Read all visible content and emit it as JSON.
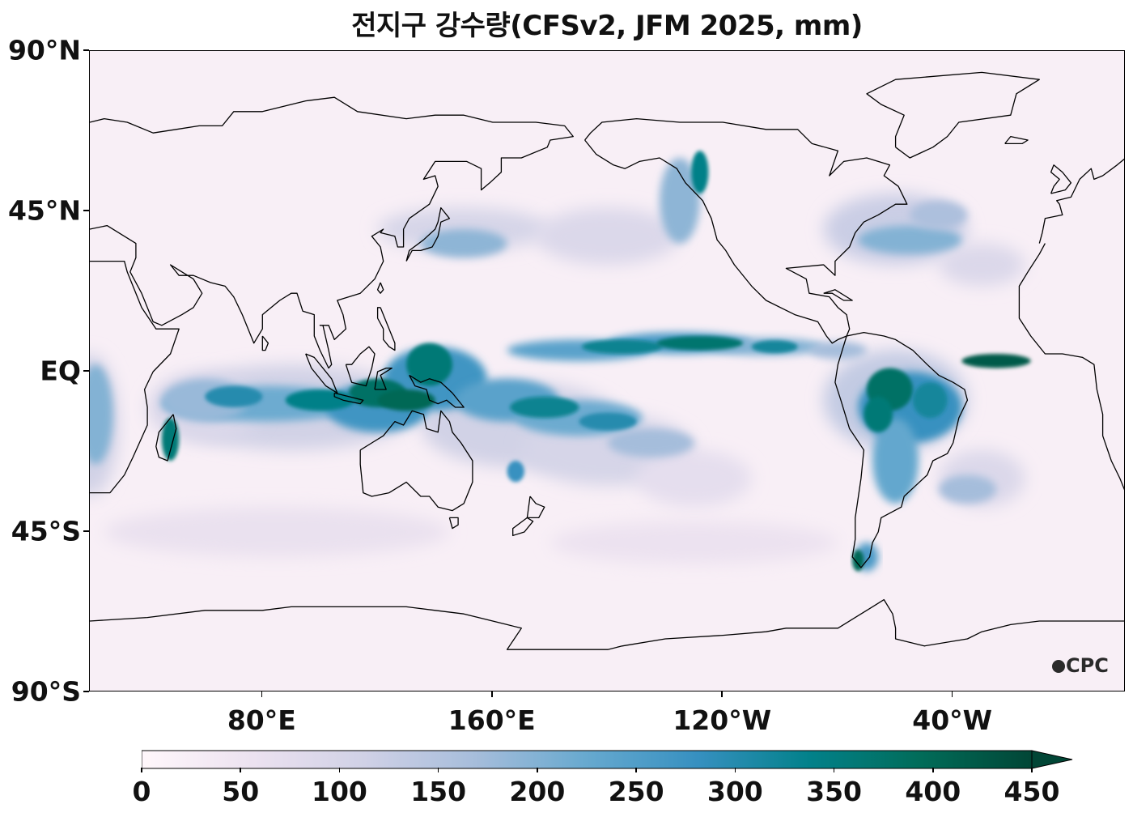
{
  "title": "전지구 강수량(CFSv2, JFM 2025, mm)",
  "map": {
    "projection": "equirectangular, central meridian 180",
    "extent": {
      "lon": [
        20,
        380
      ],
      "lat": [
        -90,
        90
      ]
    },
    "lat_ticks": [
      {
        "label": "90°N",
        "lat": 90
      },
      {
        "label": "45°N",
        "lat": 45
      },
      {
        "label": "EQ",
        "lat": 0
      },
      {
        "label": "45°S",
        "lat": -45
      },
      {
        "label": "90°S",
        "lat": -90
      }
    ],
    "lon_ticks": [
      {
        "label": "80°E",
        "lon": 80
      },
      {
        "label": "160°E",
        "lon": 160
      },
      {
        "label": "120°W",
        "lon": 240
      },
      {
        "label": "40°W",
        "lon": 320
      }
    ],
    "watermark": "CPC",
    "colors": {
      "ocean_base": "#f7eef5",
      "coast": "#000000"
    }
  },
  "colorbar": {
    "ticks": [
      "0",
      "50",
      "100",
      "150",
      "200",
      "250",
      "300",
      "350",
      "400",
      "450"
    ],
    "min": 0,
    "max": 450,
    "extend": "max",
    "colormap": "PuBuGn",
    "colors": [
      "#fff7fb",
      "#ece2f0",
      "#d0d1e6",
      "#a6bddb",
      "#67a9cf",
      "#3690c0",
      "#02818a",
      "#016c59",
      "#014636"
    ]
  }
}
